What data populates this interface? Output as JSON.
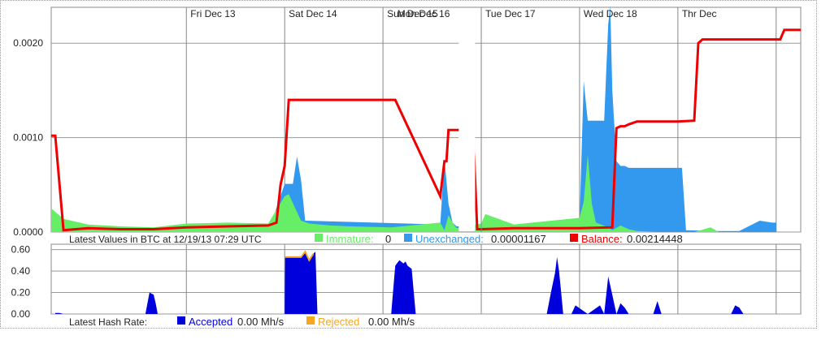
{
  "chart_data": [
    {
      "type": "area",
      "name_key": "balance",
      "x_axis_labels": [
        "Fri  Dec 13",
        "Sat  Dec 14",
        "Sun Dec 15",
        "Mon  Dec 16",
        "Tue  Dec 17",
        "Wed  Dec 18",
        "Thr  Dec"
      ],
      "y_ticks": [
        "0.0000",
        "0.0010",
        "0.0020"
      ],
      "ylim": [
        0,
        0.00238
      ],
      "time_unit": "hours since Fri Dec 13 00:00",
      "xlim": [
        -33,
        150
      ],
      "legend": {
        "prefix": "Latest Values in BTC at 12/19/13 07:29 UTC",
        "items": [
          {
            "label": "Immature:",
            "value": "0",
            "color": "#66ee66",
            "label_color": "#66ee66"
          },
          {
            "label": "Unexchanged:",
            "value": "0.00001167",
            "color": "#3399ee",
            "label_color": "#3399ee"
          },
          {
            "label": "Balance:",
            "value": "0.00214448",
            "color": "#ee0000",
            "label_color": "#ee0000"
          }
        ]
      },
      "series": [
        {
          "name": "Immature",
          "color": "#66ee66",
          "x": [
            -33,
            -30,
            -24,
            -16,
            -8,
            0,
            10,
            20,
            24,
            25,
            28,
            30,
            35,
            40,
            50,
            62,
            63,
            64,
            65,
            66,
            72,
            73,
            80,
            96,
            97,
            98,
            99,
            100,
            103,
            104,
            106,
            107,
            108,
            110,
            115,
            120,
            124,
            128,
            130,
            140,
            150
          ],
          "y": [
            0.00025,
            0.00014,
            8e-05,
            6e-05,
            5e-05,
            9e-05,
            0.0001,
            9e-05,
            0.00038,
            0.0004,
            0.00012,
            9e-05,
            7e-05,
            6e-05,
            5e-05,
            0.0001,
            2e-05,
            0.00018,
            0.0001,
            4e-05,
            9e-05,
            0.00019,
            8e-05,
            0.00015,
            0.00032,
            0.00082,
            0.0003,
            0.0001,
            5e-05,
            2e-05,
            7e-05,
            5e-05,
            3e-05,
            1e-05,
            0.0,
            0.0,
            0.0,
            5e-05,
            0.0,
            0.0,
            0.0
          ]
        },
        {
          "name": "Unexchanged",
          "color": "#3399ee",
          "x": [
            -33,
            20,
            24,
            26,
            27,
            28,
            29,
            62,
            63,
            64,
            65,
            66,
            96,
            97,
            98,
            99,
            100,
            102,
            103,
            103.5,
            104,
            105,
            106,
            107,
            108,
            110,
            115,
            121,
            122,
            130,
            135,
            140,
            143,
            144
          ],
          "y": [
            0,
            0,
            0.00051,
            0.00051,
            0.0008,
            0.00055,
            0.00012,
            8e-05,
            0.00078,
            0.0003,
            0.0001,
            6e-05,
            0.0001,
            0.0016,
            0.00118,
            0.00118,
            0.00118,
            0.00118,
            0.0022,
            0.0024,
            0.0015,
            0.00075,
            0.0007,
            0.0007,
            0.00068,
            0.00068,
            0.00068,
            0.00068,
            2e-05,
            1e-05,
            1e-05,
            0.00012,
            0.0001,
            0.0001
          ]
        },
        {
          "name": "Balance",
          "color": "#ee0000",
          "x": [
            -33,
            -32,
            -30,
            -24,
            -16,
            -8,
            0,
            10,
            20,
            22,
            23,
            24,
            25,
            26,
            28,
            35,
            45,
            51,
            62,
            63,
            63.5,
            64,
            65,
            66,
            70,
            71,
            72,
            80,
            90,
            96,
            104,
            105,
            106,
            107,
            108,
            110,
            115,
            120,
            124,
            125,
            126,
            130,
            140,
            145,
            146,
            150
          ],
          "y": [
            0.00102,
            0.00102,
            2e-05,
            4e-05,
            3e-05,
            3e-05,
            5e-05,
            6e-05,
            7e-05,
            0.0001,
            0.0005,
            0.0007,
            0.0014,
            0.0014,
            0.0014,
            0.0014,
            0.0014,
            0.0014,
            0.00038,
            0.00075,
            0.00075,
            0.00108,
            0.00108,
            0.00108,
            0.00108,
            3e-05,
            3e-05,
            4e-05,
            4e-05,
            4e-05,
            5e-05,
            0.0011,
            0.00112,
            0.00112,
            0.00114,
            0.00117,
            0.00117,
            0.00117,
            0.00118,
            0.002,
            0.00204,
            0.00204,
            0.00204,
            0.00204,
            0.00214,
            0.00214
          ]
        }
      ]
    },
    {
      "type": "area",
      "name_key": "hashrate",
      "y_ticks": [
        "0.00",
        "0.20",
        "0.40",
        "0.60"
      ],
      "ylim": [
        0,
        0.65
      ],
      "legend": {
        "prefix": "Latest Hash Rate:",
        "items": [
          {
            "label": "Accepted",
            "value": "0.00 Mh/s",
            "color": "#0000dd",
            "label_color": "#0000dd"
          },
          {
            "label": "Rejected",
            "value": "0.00 Mh/s",
            "color": "#f5a623",
            "label_color": "#f5a623"
          }
        ]
      },
      "series": [
        {
          "name": "Accepted",
          "color": "#0000dd",
          "x": [
            -32,
            -31,
            -30,
            -10,
            -9,
            -8,
            -7.5,
            -7,
            24,
            24.1,
            28,
            29,
            30,
            31,
            31.5,
            32,
            50,
            51,
            52,
            53,
            53.5,
            54,
            55,
            56,
            56.5,
            88,
            89,
            90,
            90.5,
            91,
            91.5,
            92,
            93,
            94,
            95,
            98,
            101,
            102,
            103,
            104,
            105,
            106,
            107,
            108,
            114,
            115,
            116,
            133,
            134,
            135,
            136
          ],
          "y": [
            0.01,
            0.01,
            0,
            0,
            0.2,
            0.18,
            0.1,
            0,
            0,
            0.53,
            0.53,
            0.58,
            0.5,
            0.56,
            0.58,
            0,
            0,
            0.45,
            0.5,
            0.47,
            0.49,
            0.45,
            0.42,
            0,
            0,
            0,
            0.2,
            0.38,
            0.53,
            0.4,
            0.2,
            0,
            0,
            0,
            0.08,
            0,
            0.08,
            0,
            0.35,
            0.18,
            0,
            0.1,
            0.06,
            0,
            0,
            0.12,
            0,
            0,
            0.08,
            0.06,
            0
          ]
        },
        {
          "name": "Rejected",
          "color": "#f5a623",
          "x": [
            24,
            24.1,
            28,
            29,
            30,
            31,
            32
          ],
          "y": [
            0,
            0.01,
            0.01,
            0.01,
            0.01,
            0.01,
            0
          ]
        }
      ]
    }
  ]
}
